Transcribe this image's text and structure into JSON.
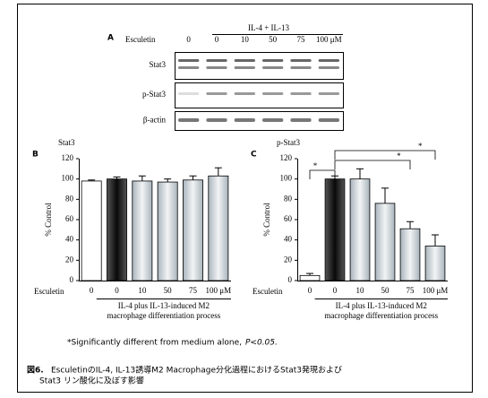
{
  "panel_a": {
    "label": "A",
    "treatment_label": "Esculetin",
    "doses": [
      "0",
      "0",
      "10",
      "50",
      "75",
      "100 μM"
    ],
    "group_label": "IL-4 + IL-13",
    "rows": [
      "Stat3",
      "p-Stat3",
      "β-actin"
    ]
  },
  "chart_data": [
    {
      "type": "bar",
      "panel": "B",
      "title": "Stat3",
      "ylabel": "% Control",
      "xlabel": "Esculetin",
      "categories": [
        "0",
        "0",
        "10",
        "50",
        "75",
        "100 μM"
      ],
      "values": [
        98,
        100,
        98,
        97,
        99,
        103
      ],
      "errors": [
        1,
        2,
        5,
        3,
        4,
        8
      ],
      "colors": [
        "#ffffff",
        "#555555",
        "#a9b4bc",
        "#a9b4bc",
        "#a9b4bc",
        "#a9b4bc"
      ],
      "ylim": [
        0,
        120
      ],
      "yticks": [
        0,
        20,
        40,
        60,
        80,
        100,
        120
      ],
      "group_label": [
        "IL-4 plus IL-13-induced M2",
        "macrophage  differentiation process"
      ],
      "significance": []
    },
    {
      "type": "bar",
      "panel": "C",
      "title": "p-Stat3",
      "ylabel": "% Control",
      "xlabel": "Esculetin",
      "categories": [
        "0",
        "0",
        "10",
        "50",
        "75",
        "100 μM"
      ],
      "values": [
        5,
        100,
        100,
        76,
        51,
        34
      ],
      "errors": [
        2,
        3,
        10,
        15,
        7,
        11
      ],
      "colors": [
        "#ffffff",
        "#555555",
        "#a9b4bc",
        "#a9b4bc",
        "#a9b4bc",
        "#a9b4bc"
      ],
      "ylim": [
        0,
        120
      ],
      "yticks": [
        0,
        20,
        40,
        60,
        80,
        100,
        120
      ],
      "group_label": [
        "IL-4 plus IL-13-induced M2",
        "macrophage  differentiation process"
      ],
      "significance": [
        {
          "from": 0,
          "to": 1,
          "label": "*"
        },
        {
          "from": 1,
          "to": 4,
          "label": "*"
        },
        {
          "from": 1,
          "to": 5,
          "label": "*"
        }
      ]
    }
  ],
  "footnote": {
    "text": "*Significantly different from medium alone,",
    "p_value": "P<0.05."
  },
  "caption": {
    "label": "図6.",
    "lines": [
      "EsculetinのIL-4, IL-13誘導M2 Macrophage分化過程におけるStat3発現および",
      "Stat3 リン酸化に及ぼす影響"
    ]
  }
}
